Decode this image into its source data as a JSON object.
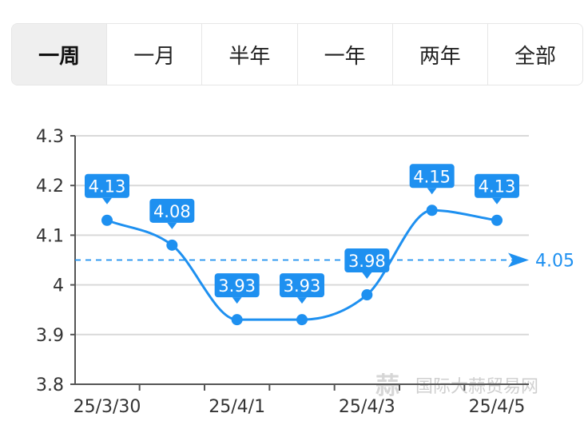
{
  "tabs": [
    {
      "label": "一周",
      "active": true
    },
    {
      "label": "一月",
      "active": false
    },
    {
      "label": "半年",
      "active": false
    },
    {
      "label": "一年",
      "active": false
    },
    {
      "label": "两年",
      "active": false
    },
    {
      "label": "全部",
      "active": false
    }
  ],
  "chart_data": {
    "type": "line",
    "title": "",
    "xlabel": "",
    "ylabel": "",
    "x": [
      "25/3/30",
      "25/3/31",
      "25/4/1",
      "25/4/2",
      "25/4/3",
      "25/4/4",
      "25/4/5"
    ],
    "x_tick_labels": [
      "25/3/30",
      "25/4/1",
      "25/4/3",
      "25/4/5"
    ],
    "series": [
      {
        "values": [
          4.13,
          4.08,
          3.93,
          3.93,
          3.98,
          4.15,
          4.13
        ]
      }
    ],
    "data_labels": [
      "4.13",
      "4.08",
      "3.93",
      "3.93",
      "3.98",
      "4.15",
      "4.13"
    ],
    "average": {
      "value": 4.05,
      "label": "4.05"
    },
    "y_ticks": [
      "4.3",
      "4.2",
      "4.1",
      "4",
      "3.9",
      "3.8"
    ],
    "ylim": [
      3.8,
      4.3
    ],
    "grid": true,
    "colors": {
      "line": "#1e90f0",
      "grid": "#d9d9d9",
      "axis": "#555555",
      "label_bg": "#1e90f0"
    }
  },
  "watermark": "国际大蒜贸易网"
}
